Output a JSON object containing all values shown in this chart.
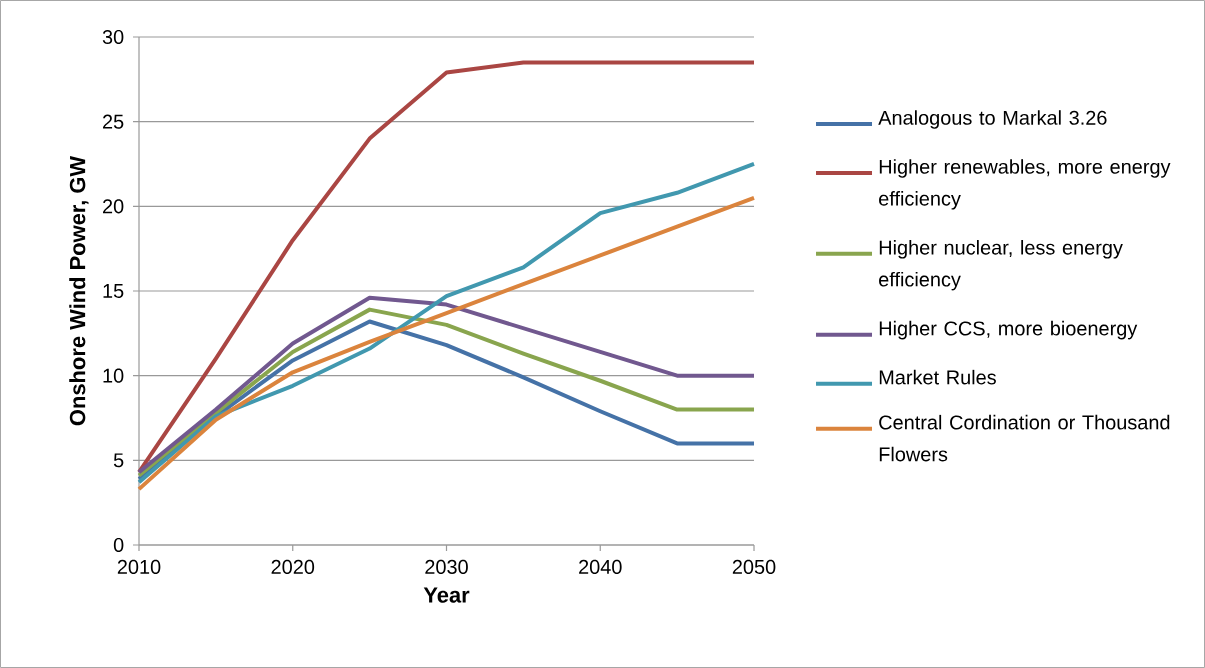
{
  "chart_data": {
    "type": "line",
    "xlabel": "Year",
    "ylabel": "Onshore Wind Power, GW",
    "x": [
      2010,
      2015,
      2020,
      2025,
      2030,
      2035,
      2040,
      2045,
      2050
    ],
    "xlim": [
      2010,
      2050
    ],
    "xticks": [
      2010,
      2020,
      2030,
      2040,
      2050
    ],
    "ylim": [
      0,
      30
    ],
    "yticks": [
      0,
      5,
      10,
      15,
      20,
      25,
      30
    ],
    "grid": "y",
    "legend": "right",
    "marker": "none",
    "line_style": "solid",
    "series": [
      {
        "name": "Analogous to Markal 3.26",
        "color": "#4572a7",
        "values": [
          3.9,
          7.6,
          10.9,
          13.2,
          11.8,
          9.9,
          7.9,
          6.0,
          6.0
        ]
      },
      {
        "name": "Higher renewables, more energy efficiency",
        "color": "#aa4643",
        "values": [
          4.3,
          11,
          18,
          24,
          27.9,
          28.5,
          28.5,
          28.5,
          28.5
        ]
      },
      {
        "name": "Higher nuclear, less energy efficiency",
        "color": "#89a54e",
        "values": [
          4.1,
          7.8,
          11.4,
          13.9,
          13.0,
          11.3,
          9.7,
          8.0,
          8.0
        ]
      },
      {
        "name": "Higher CCS, more bioenergy",
        "color": "#71588f",
        "values": [
          4.3,
          8.0,
          11.9,
          14.6,
          14.2,
          12.8,
          11.4,
          10.0,
          10.0
        ]
      },
      {
        "name": "Market Rules",
        "color": "#4198af",
        "values": [
          3.7,
          7.6,
          9.4,
          11.6,
          14.7,
          16.4,
          19.6,
          20.8,
          22.5
        ]
      },
      {
        "name": "Central Cordination or Thousand Flowers",
        "color": "#db843d",
        "values": [
          3.3,
          7.4,
          10.2,
          12.0,
          13.7,
          15.4,
          17.1,
          18.8,
          20.5
        ]
      }
    ]
  }
}
